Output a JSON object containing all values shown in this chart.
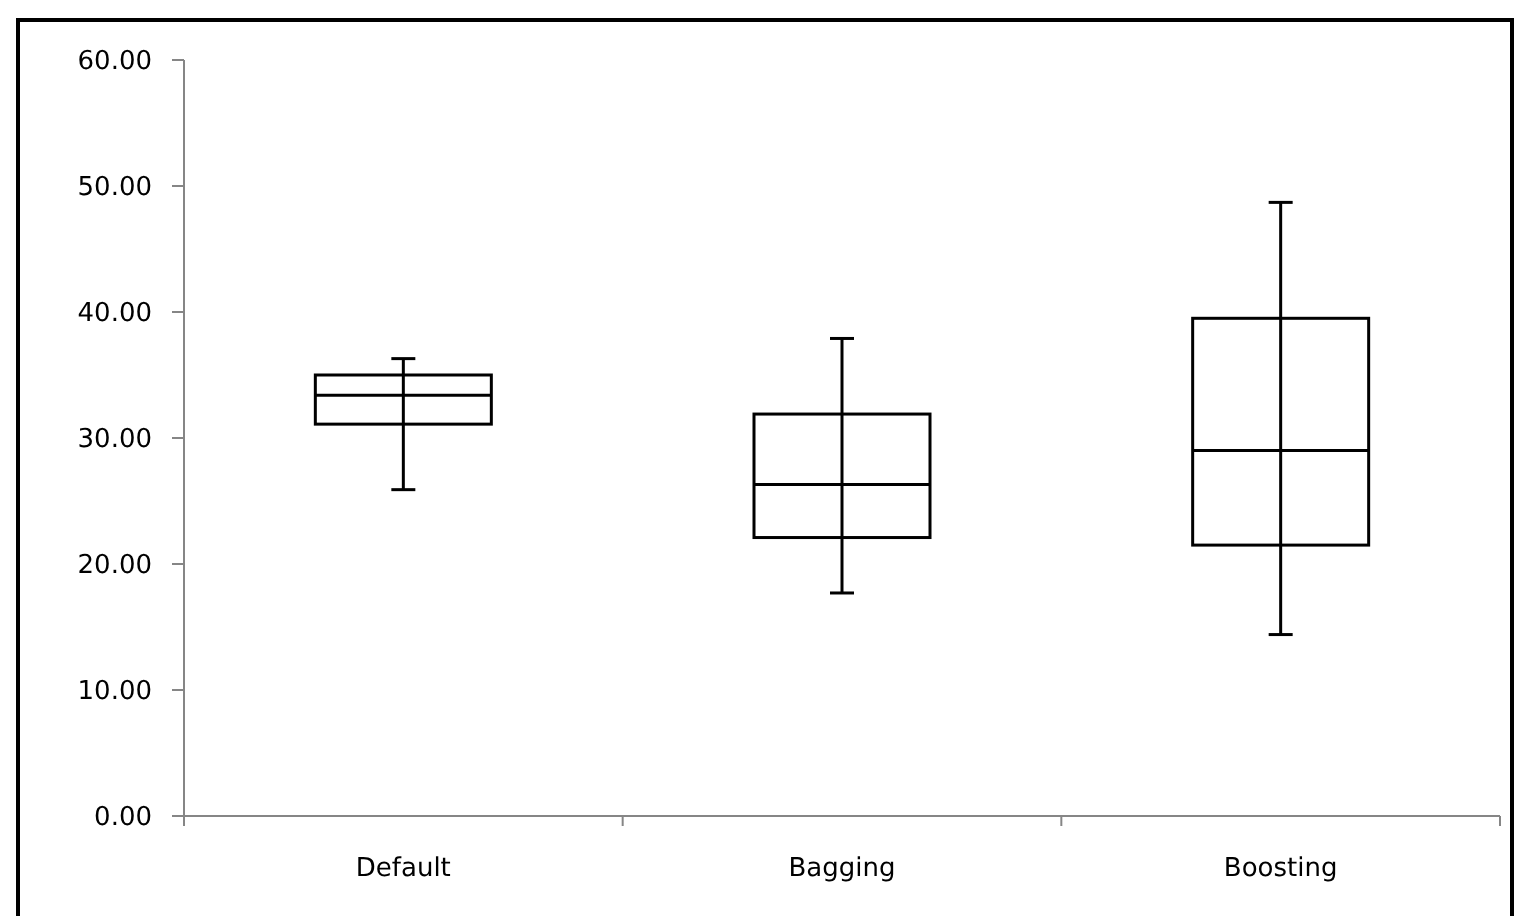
{
  "chart_data": {
    "type": "box",
    "categories": [
      "Default",
      "Bagging",
      "Boosting"
    ],
    "boxes": [
      {
        "low": 25.9,
        "q1": 31.1,
        "median": 33.4,
        "q3": 35.0,
        "high": 36.3
      },
      {
        "low": 17.7,
        "q1": 22.1,
        "median": 26.3,
        "q3": 31.9,
        "high": 37.9
      },
      {
        "low": 14.4,
        "q1": 21.5,
        "median": 29.0,
        "q3": 39.5,
        "high": 48.7
      }
    ],
    "color": "#000000",
    "ylim": [
      0,
      60
    ],
    "yticks": [
      {
        "value": 0,
        "label": "0.00"
      },
      {
        "value": 10,
        "label": "10.00"
      },
      {
        "value": 20,
        "label": "20.00"
      },
      {
        "value": 30,
        "label": "30.00"
      },
      {
        "value": 40,
        "label": "40.00"
      },
      {
        "value": 50,
        "label": "50.00"
      },
      {
        "value": 60,
        "label": "60.00"
      }
    ],
    "grid": false
  }
}
